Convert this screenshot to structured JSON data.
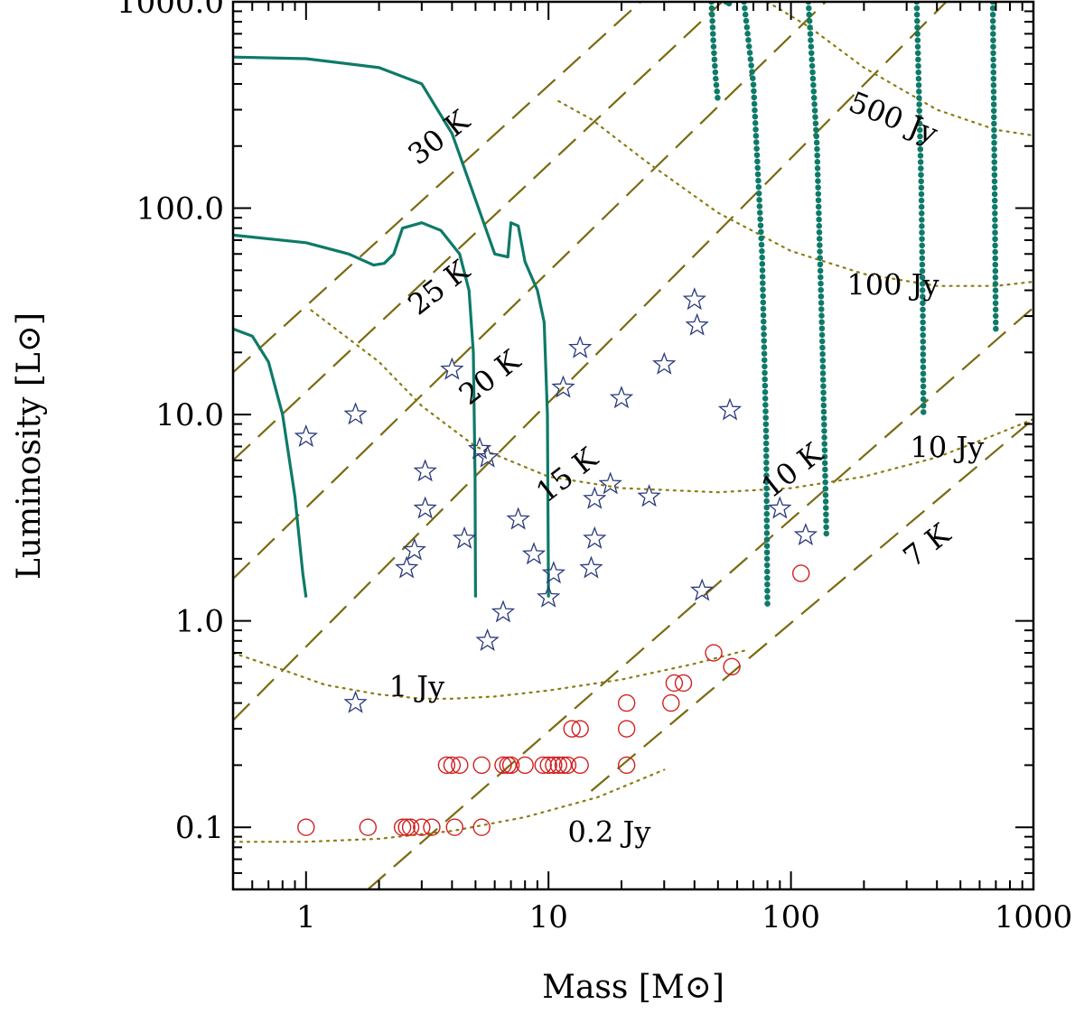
{
  "chart_data": {
    "type": "scatter",
    "xlabel": "Mass [M⊙]",
    "ylabel": "Luminosity [L⊙]",
    "xscale": "log",
    "yscale": "log",
    "xlim": [
      0.5,
      1000
    ],
    "ylim": [
      0.05,
      1000
    ],
    "xticks": [
      {
        "value": 1,
        "label": "1"
      },
      {
        "value": 10,
        "label": "10"
      },
      {
        "value": 100,
        "label": "100"
      },
      {
        "value": 1000,
        "label": "1000"
      }
    ],
    "yticks": [
      {
        "value": 0.1,
        "label": "0.1"
      },
      {
        "value": 1,
        "label": "1.0"
      },
      {
        "value": 10,
        "label": "10.0"
      },
      {
        "value": 100,
        "label": "100.0"
      },
      {
        "value": 1000,
        "label": "1000.0"
      }
    ],
    "colors": {
      "track": "#0e7a68",
      "temperature": "#7a6a10",
      "flux": "#8a7c10",
      "stars": "#2a3a7a",
      "circles": "#d22020"
    },
    "temperature_lines": [
      {
        "label": "30 K",
        "line": [
          [
            0.5,
            16
          ],
          [
            24,
            1000
          ]
        ]
      },
      {
        "label": "25 K",
        "line": [
          [
            0.5,
            6
          ],
          [
            52,
            1000
          ]
        ]
      },
      {
        "label": "20 K",
        "line": [
          [
            0.5,
            1.6
          ],
          [
            139,
            1000
          ]
        ]
      },
      {
        "label": "15 K",
        "line": [
          [
            0.5,
            0.33
          ],
          [
            437,
            1000
          ]
        ]
      },
      {
        "label": "10 K",
        "line": [
          [
            1.8,
            0.05
          ],
          [
            1000,
            33
          ]
        ]
      },
      {
        "label": "7 K",
        "line": [
          [
            15,
            0.15
          ],
          [
            1000,
            9.5
          ]
        ]
      }
    ],
    "temperature_labels": [
      {
        "text": "30 K",
        "x": 2.9,
        "y": 160,
        "angle": -38
      },
      {
        "text": "25 K",
        "x": 2.9,
        "y": 30,
        "angle": -38
      },
      {
        "text": "20 K",
        "x": 4.7,
        "y": 11,
        "angle": -38
      },
      {
        "text": "15 K",
        "x": 9.8,
        "y": 3.7,
        "angle": -38
      },
      {
        "text": "10 K",
        "x": 83,
        "y": 3.9,
        "angle": -38
      },
      {
        "text": "7 K",
        "x": 320,
        "y": 1.8,
        "angle": -38
      }
    ],
    "flux_curves": [
      {
        "label": "0.2 Jy",
        "points": [
          [
            0.5,
            0.085
          ],
          [
            1,
            0.085
          ],
          [
            2,
            0.088
          ],
          [
            4,
            0.096
          ],
          [
            8,
            0.112
          ],
          [
            16,
            0.14
          ],
          [
            30,
            0.19
          ]
        ]
      },
      {
        "label": "1 Jy",
        "points": [
          [
            0.5,
            0.7
          ],
          [
            0.8,
            0.58
          ],
          [
            1.2,
            0.49
          ],
          [
            2,
            0.44
          ],
          [
            3,
            0.42
          ],
          [
            4,
            0.42
          ],
          [
            6,
            0.43
          ],
          [
            10,
            0.46
          ],
          [
            20,
            0.52
          ],
          [
            40,
            0.62
          ],
          [
            65,
            0.72
          ]
        ]
      },
      {
        "label": "10 Jy",
        "points": [
          [
            1.05,
            32
          ],
          [
            2,
            18
          ],
          [
            3,
            11
          ],
          [
            5,
            7
          ],
          [
            10,
            5
          ],
          [
            20,
            4.4
          ],
          [
            50,
            4.2
          ],
          [
            100,
            4.4
          ],
          [
            200,
            5
          ],
          [
            400,
            6.2
          ],
          [
            700,
            8
          ],
          [
            1000,
            9.5
          ]
        ]
      },
      {
        "label": "100 Jy",
        "points": [
          [
            11,
            330
          ],
          [
            15,
            270
          ],
          [
            25,
            170
          ],
          [
            50,
            95
          ],
          [
            100,
            62
          ],
          [
            200,
            48
          ],
          [
            400,
            42
          ],
          [
            700,
            42
          ],
          [
            1000,
            44
          ]
        ]
      },
      {
        "label": "500 Jy",
        "points": [
          [
            80,
            1000
          ],
          [
            120,
            750
          ],
          [
            200,
            480
          ],
          [
            400,
            300
          ],
          [
            700,
            240
          ],
          [
            1000,
            225
          ]
        ]
      }
    ],
    "flux_labels": [
      {
        "text": "0.2 Jy",
        "x": 12,
        "y": 0.085
      },
      {
        "text": "1 Jy",
        "x": 2.2,
        "y": 0.43
      },
      {
        "text": "10 Jy",
        "x": 310,
        "y": 6.2
      },
      {
        "text": "100 Jy",
        "x": 170,
        "y": 38
      },
      {
        "text": "500 Jy",
        "x": 170,
        "y": 300,
        "angle": 22
      }
    ],
    "tracks_solid": [
      {
        "name": "track-1",
        "points": [
          [
            0.5,
            26
          ],
          [
            0.6,
            24
          ],
          [
            0.7,
            18
          ],
          [
            0.8,
            10
          ],
          [
            0.9,
            4
          ],
          [
            0.97,
            1.7
          ],
          [
            1,
            1.3
          ]
        ]
      },
      {
        "name": "track-5",
        "points": [
          [
            0.5,
            74
          ],
          [
            1,
            68
          ],
          [
            1.5,
            60
          ],
          [
            1.9,
            53
          ],
          [
            2.1,
            54
          ],
          [
            2.3,
            60
          ],
          [
            2.5,
            80
          ],
          [
            3,
            85
          ],
          [
            3.6,
            78
          ],
          [
            4.3,
            60
          ],
          [
            4.7,
            40
          ],
          [
            4.9,
            20
          ],
          [
            4.98,
            5
          ],
          [
            5,
            1.3
          ]
        ]
      },
      {
        "name": "track-10",
        "points": [
          [
            0.5,
            540
          ],
          [
            1,
            530
          ],
          [
            2,
            480
          ],
          [
            3,
            400
          ],
          [
            4,
            230
          ],
          [
            5,
            110
          ],
          [
            6,
            60
          ],
          [
            6.8,
            58
          ],
          [
            7,
            85
          ],
          [
            7.5,
            82
          ],
          [
            8,
            55
          ],
          [
            9,
            40
          ],
          [
            9.6,
            28
          ],
          [
            9.9,
            10
          ],
          [
            10,
            1.3
          ]
        ]
      }
    ],
    "tracks_dotted": [
      {
        "name": "track-50",
        "points": [
          [
            47,
            1000
          ],
          [
            48,
            600
          ],
          [
            49,
            420
          ],
          [
            50,
            330
          ]
        ]
      },
      {
        "name": "track-80",
        "points": [
          [
            54,
            1000
          ],
          [
            55,
            960
          ],
          [
            56,
            1000
          ]
        ]
      },
      {
        "name": "track-80b",
        "points": [
          [
            64,
            1000
          ],
          [
            70,
            400
          ],
          [
            76,
            60
          ],
          [
            79,
            8
          ],
          [
            80,
            1.15
          ]
        ]
      },
      {
        "name": "track-140",
        "points": [
          [
            118,
            1000
          ],
          [
            128,
            200
          ],
          [
            135,
            20
          ],
          [
            139,
            4
          ],
          [
            140,
            2.6
          ]
        ]
      },
      {
        "name": "track-350",
        "points": [
          [
            330,
            1000
          ],
          [
            345,
            120
          ],
          [
            350,
            30
          ],
          [
            352,
            10
          ]
        ]
      },
      {
        "name": "track-700",
        "points": [
          [
            680,
            1000
          ],
          [
            693,
            100
          ],
          [
            700,
            25
          ]
        ]
      }
    ],
    "series": [
      {
        "name": "stars",
        "marker": "star",
        "points": [
          [
            1,
            7.8
          ],
          [
            1.6,
            10
          ],
          [
            3.1,
            5.3
          ],
          [
            3.1,
            3.5
          ],
          [
            2.8,
            2.2
          ],
          [
            2.6,
            1.8
          ],
          [
            4,
            16.5
          ],
          [
            4.5,
            2.5
          ],
          [
            5.2,
            6.8
          ],
          [
            5.6,
            6.2
          ],
          [
            7.5,
            3.1
          ],
          [
            6.5,
            1.1
          ],
          [
            5.6,
            0.8
          ],
          [
            8.7,
            2.1
          ],
          [
            10,
            1.3
          ],
          [
            10.5,
            1.7
          ],
          [
            11.5,
            13.5
          ],
          [
            13.5,
            21
          ],
          [
            15.5,
            3.9
          ],
          [
            15.5,
            2.5
          ],
          [
            15,
            1.8
          ],
          [
            18,
            4.6
          ],
          [
            20,
            12
          ],
          [
            26,
            4
          ],
          [
            30,
            17.5
          ],
          [
            40,
            36
          ],
          [
            41,
            27
          ],
          [
            56,
            10.5
          ],
          [
            43,
            1.4
          ],
          [
            90,
            3.5
          ],
          [
            115,
            2.6
          ],
          [
            1.6,
            0.4
          ]
        ]
      },
      {
        "name": "circles",
        "marker": "circle",
        "points": [
          [
            1,
            0.1
          ],
          [
            1.8,
            0.1
          ],
          [
            2.5,
            0.1
          ],
          [
            2.6,
            0.1
          ],
          [
            2.7,
            0.1
          ],
          [
            3,
            0.1
          ],
          [
            3.3,
            0.1
          ],
          [
            4.1,
            0.1
          ],
          [
            5.3,
            0.1
          ],
          [
            3.8,
            0.2
          ],
          [
            4,
            0.2
          ],
          [
            4.3,
            0.2
          ],
          [
            5.3,
            0.2
          ],
          [
            6.5,
            0.2
          ],
          [
            6.8,
            0.2
          ],
          [
            7,
            0.2
          ],
          [
            8,
            0.2
          ],
          [
            9.5,
            0.2
          ],
          [
            10,
            0.2
          ],
          [
            10.5,
            0.2
          ],
          [
            11,
            0.2
          ],
          [
            11.5,
            0.2
          ],
          [
            12,
            0.2
          ],
          [
            13.5,
            0.2
          ],
          [
            21,
            0.2
          ],
          [
            12.5,
            0.3
          ],
          [
            13.5,
            0.3
          ],
          [
            21,
            0.3
          ],
          [
            21,
            0.4
          ],
          [
            32,
            0.4
          ],
          [
            33,
            0.5
          ],
          [
            36,
            0.5
          ],
          [
            48,
            0.7
          ],
          [
            57,
            0.6
          ],
          [
            110,
            1.7
          ]
        ]
      }
    ]
  }
}
